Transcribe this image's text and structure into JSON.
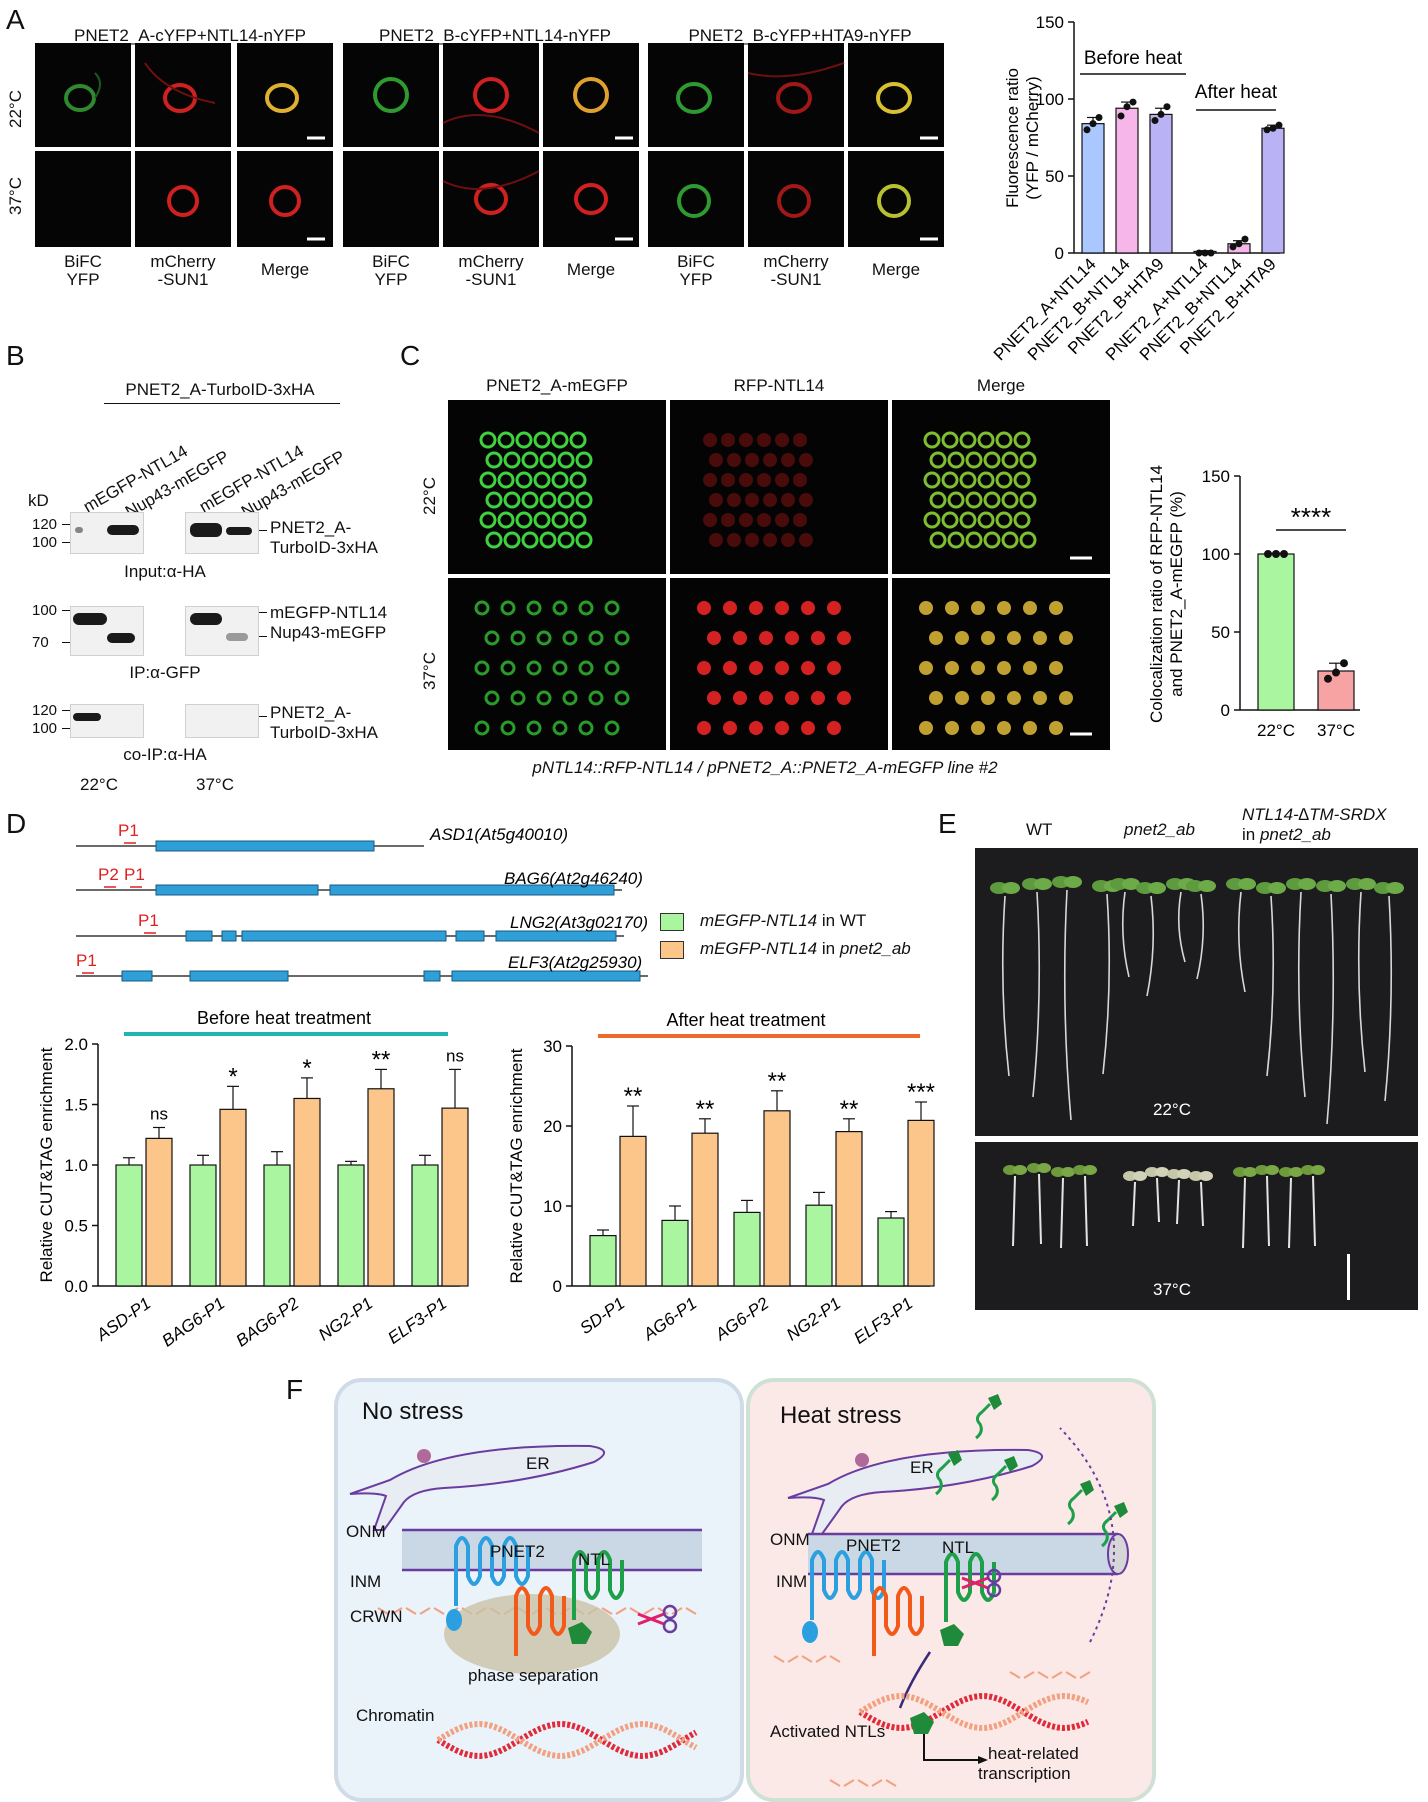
{
  "panelA": {
    "label": "A",
    "groups": [
      {
        "title": "PNET2_A-cYFP+NTL14-nYFP"
      },
      {
        "title": "PNET2_B-cYFP+NTL14-nYFP"
      },
      {
        "title": "PNET2_B-cYFP+HTA9-nYFP"
      }
    ],
    "row_labels": [
      "22°C",
      "37°C"
    ],
    "col_labels": {
      "bifc1": "BiFC",
      "bifc2": "YFP",
      "mch1": "mCherry",
      "mch2": "-SUN1",
      "merge": "Merge"
    }
  },
  "panelA_chart": {
    "chart_data": {
      "type": "bar",
      "ylabel_line1": "Fluorescence ratio",
      "ylabel_line2": "(YFP / mCherry)",
      "ylim": [
        0,
        150
      ],
      "yticks": [
        0,
        50,
        100,
        150
      ],
      "categories": [
        "PNET2_A+NTL14",
        "PNET2_B+NTL14",
        "PNET2_B+HTA9",
        "PNET2_A+NTL14",
        "PNET2_B+NTL14",
        "PNET2_B+HTA9"
      ],
      "values": [
        84,
        94,
        90,
        1,
        6,
        81
      ],
      "errors": [
        4,
        4,
        4,
        0.5,
        2,
        2
      ],
      "points": [
        [
          80,
          84,
          88
        ],
        [
          89,
          95,
          98
        ],
        [
          86,
          90,
          95
        ],
        [
          0,
          0,
          0
        ],
        [
          4,
          6,
          9
        ],
        [
          80,
          81,
          83
        ]
      ],
      "colors": [
        "#aac8ff",
        "#f7b6ea",
        "#b9b3f5",
        "#aac8ff",
        "#f7b6ea",
        "#b9b3f5"
      ],
      "annotations": [
        {
          "text": "Before heat"
        },
        {
          "text": "After heat"
        }
      ]
    }
  },
  "panelB": {
    "label": "B",
    "header": "PNET2_A-TurboID-3xHA",
    "lanes": [
      "mEGFP-NTL14",
      "Nup43-mEGFP",
      "mEGFP-NTL14",
      "Nup43-mEGFP"
    ],
    "kd": "kD",
    "blot1": {
      "markers": [
        "120",
        "100"
      ],
      "caption": "Input:α-HA",
      "right1": "PNET2_A-",
      "right2": "TurboID-3xHA"
    },
    "blot2": {
      "markers": [
        "100",
        "70"
      ],
      "caption": "IP:α-GFP",
      "right1": "mEGFP-NTL14",
      "right2": "Nup43-mEGFP"
    },
    "blot3": {
      "markers": [
        "120",
        "100"
      ],
      "caption": "co-IP:α-HA",
      "right1": "PNET2_A-",
      "right2": "TurboID-3xHA"
    },
    "temps": [
      "22°C",
      "37°C"
    ]
  },
  "panelC": {
    "label": "C",
    "cols": [
      "PNET2_A-mEGFP",
      "RFP-NTL14",
      "Merge"
    ],
    "rows": [
      "22°C",
      "37°C"
    ],
    "caption": "pNTL14::RFP-NTL14 / pPNET2_A::PNET2_A-mEGFP line #2"
  },
  "panelC_chart": {
    "chart_data": {
      "type": "bar",
      "ylabel_line1": "Colocalization ratio of RFP-NTL14",
      "ylabel_line2": "and PNET2_A-mEGFP (%)",
      "ylim": [
        0,
        150
      ],
      "yticks": [
        0,
        50,
        100,
        150
      ],
      "categories": [
        "22°C",
        "37°C"
      ],
      "values": [
        100,
        25
      ],
      "errors": [
        0.5,
        5
      ],
      "points": [
        [
          100,
          100,
          100
        ],
        [
          20,
          24,
          30
        ]
      ],
      "colors": [
        "#a9f5a0",
        "#f7a3a3"
      ],
      "significance": "****"
    }
  },
  "panelD": {
    "label": "D",
    "genes": [
      {
        "name": "ASD1(At5g40010)",
        "primers": [
          "P1"
        ]
      },
      {
        "name": "BAG6(At2g46240)",
        "primers": [
          "P2",
          "P1"
        ]
      },
      {
        "name": "LNG2(At3g02170)",
        "primers": [
          "P1"
        ]
      },
      {
        "name": "ELF3(At2g25930)",
        "primers": [
          "P1"
        ]
      }
    ],
    "legend": [
      {
        "pre": "mEGFP-NTL14",
        "post": " in WT",
        "color": "#a9f5a0"
      },
      {
        "pre": "mEGFP-NTL14",
        "post": " in ",
        "tail": "pnet2_ab",
        "color": "#fcc58a"
      }
    ],
    "chart_data": [
      {
        "type": "bar",
        "title": "Before heat treatment",
        "ylabel": "Relative CUT&TAG enrichment",
        "ylim": [
          0,
          2.0
        ],
        "yticks": [
          "0.0",
          "0.5",
          "1.0",
          "1.5",
          "2.0"
        ],
        "categories": [
          "ASD-P1",
          "BAG6-P1",
          "BAG6-P2",
          "NG2-P1",
          "ELF3-P1"
        ],
        "series": [
          {
            "name": "mEGFP-NTL14 in WT",
            "values": [
              1.0,
              1.0,
              1.0,
              1.0,
              1.0
            ],
            "errors": [
              0.06,
              0.08,
              0.11,
              0.03,
              0.08
            ]
          },
          {
            "name": "mEGFP-NTL14 in pnet2_ab",
            "values": [
              1.22,
              1.46,
              1.55,
              1.63,
              1.47
            ],
            "errors": [
              0.09,
              0.19,
              0.17,
              0.16,
              0.32
            ]
          }
        ],
        "significance": [
          "ns",
          "*",
          "*",
          "**",
          "ns"
        ]
      },
      {
        "type": "bar",
        "title": "After heat treatment",
        "ylabel": "Relative CUT&TAG enrichment",
        "ylim": [
          0,
          30
        ],
        "yticks": [
          "0",
          "10",
          "20",
          "30"
        ],
        "categories": [
          "SD-P1",
          "AG6-P1",
          "AG6-P2",
          "NG2-P1",
          "ELF3-P1"
        ],
        "series": [
          {
            "name": "mEGFP-NTL14 in WT",
            "values": [
              6.3,
              8.2,
              9.2,
              10.1,
              8.5
            ],
            "errors": [
              0.7,
              1.8,
              1.5,
              1.6,
              0.8
            ]
          },
          {
            "name": "mEGFP-NTL14 in pnet2_ab",
            "values": [
              18.7,
              19.1,
              21.9,
              19.3,
              20.7
            ],
            "errors": [
              3.8,
              1.8,
              2.5,
              1.6,
              2.3
            ]
          }
        ],
        "significance": [
          "**",
          "**",
          "**",
          "**",
          "***"
        ]
      }
    ]
  },
  "panelE": {
    "label": "E",
    "wt": "WT",
    "mut": "pnet2_ab",
    "comp1": "NTL14-∆TM-SRDX",
    "comp2a": "in ",
    "comp2b": "pnet2_ab",
    "temps": [
      "22°C",
      "37°C"
    ]
  },
  "panelF": {
    "label": "F",
    "left": {
      "title": "No stress",
      "er": "ER",
      "onm": "ONM",
      "inm": "INM",
      "crwn": "CRWN",
      "pnet2": "PNET2",
      "ntl": "NTL",
      "phase": "phase separation",
      "chromatin": "Chromatin"
    },
    "right": {
      "title": "Heat stress",
      "er": "ER",
      "onm": "ONM",
      "inm": "INM",
      "pnet2": "PNET2",
      "ntl": "NTL",
      "activated": "Activated NTLs",
      "heat1": "heat-related",
      "heat2": "transcription"
    }
  }
}
